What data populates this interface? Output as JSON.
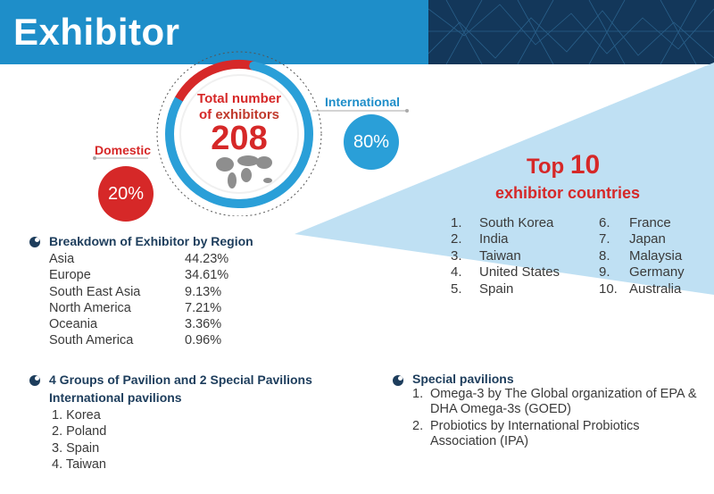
{
  "header": {
    "title": "Exhibitor"
  },
  "total": {
    "line1": "Total number",
    "line2_prefix": "of ",
    "line2_bold": "exhibitors",
    "value": "208"
  },
  "chart_data": {
    "type": "pie",
    "categories": [
      "Domestic",
      "International"
    ],
    "values": [
      20,
      80
    ],
    "labels": [
      "20%",
      "80%"
    ],
    "colors": [
      "#d62828",
      "#2a9fd8"
    ]
  },
  "top10": {
    "title_prefix": "Top ",
    "title_num": "10",
    "subtitle": "exhibitor countries",
    "col1": [
      {
        "num": "1.",
        "name": "South Korea"
      },
      {
        "num": "2.",
        "name": "India"
      },
      {
        "num": "3.",
        "name": "Taiwan"
      },
      {
        "num": "4.",
        "name": "United States"
      },
      {
        "num": "5.",
        "name": "Spain"
      }
    ],
    "col2": [
      {
        "num": "6.",
        "name": "France"
      },
      {
        "num": "7.",
        "name": "Japan"
      },
      {
        "num": "8.",
        "name": "Malaysia"
      },
      {
        "num": "9.",
        "name": "Germany"
      },
      {
        "num": "10.",
        "name": "Australia"
      }
    ]
  },
  "region": {
    "title": "Breakdown of Exhibitor by Region",
    "rows": [
      {
        "name": "Asia",
        "value": "44.23%"
      },
      {
        "name": "Europe",
        "value": "34.61%"
      },
      {
        "name": "South East Asia",
        "value": "9.13%"
      },
      {
        "name": "North America",
        "value": "7.21%"
      },
      {
        "name": "Oceania",
        "value": "3.36%"
      },
      {
        "name": "South America",
        "value": "0.96%"
      }
    ]
  },
  "pavilions": {
    "title": "4 Groups of Pavilion and 2 Special Pavilions",
    "subtitle": "International pavilions",
    "items": [
      "1. Korea",
      "2. Poland",
      "3. Spain",
      "4. Taiwan"
    ]
  },
  "special": {
    "title": "Special pavilions",
    "items": [
      {
        "n": "1.",
        "text": "Omega-3 by The Global organization of EPA & DHA Omega-3s (GOED)"
      },
      {
        "n": "2.",
        "text": "Probiotics by International Probiotics Association (IPA)"
      }
    ]
  }
}
